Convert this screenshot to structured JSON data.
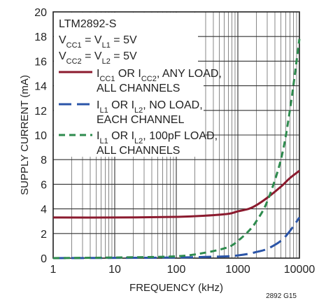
{
  "chart_data": {
    "type": "line",
    "x_scale": "log",
    "xlim": [
      1,
      10000
    ],
    "ylim": [
      0,
      20
    ],
    "xlabel": "FREQUENCY (kHz)",
    "ylabel": "SUPPLY CURRENT (mA)",
    "x_ticks": [
      "1",
      "10",
      "100",
      "1000",
      "10000"
    ],
    "y_ticks": [
      "0",
      "2",
      "4",
      "6",
      "8",
      "10",
      "12",
      "14",
      "16",
      "18",
      "20"
    ],
    "grid": true,
    "legend_position": "top-left",
    "figure_id": "2892 G15",
    "annotation": {
      "device": "LTM2892-S",
      "cond1": {
        "a": "V",
        "a_sub": "CC1",
        "b": " = V",
        "b_sub": "L1",
        "c": " = 5V"
      },
      "cond2": {
        "a": "V",
        "a_sub": "CC2",
        "b": " = V",
        "b_sub": "L2",
        "c": " = 5V"
      }
    },
    "series": [
      {
        "legend_line1": {
          "a": "I",
          "a_sub": "CC1",
          "b": " OR I",
          "b_sub": "CC2",
          "c": ", ANY LOAD,"
        },
        "legend_line2": "ALL CHANNELS",
        "color": "#8b1a2e",
        "dash": "solid",
        "x": [
          1,
          10,
          100,
          300,
          700,
          1000,
          1500,
          2000,
          3000,
          5000,
          7000,
          10000
        ],
        "values": [
          3.3,
          3.3,
          3.35,
          3.45,
          3.6,
          3.8,
          4.0,
          4.3,
          4.9,
          5.8,
          6.5,
          7.1
        ]
      },
      {
        "legend_line1": {
          "a": "I",
          "a_sub": "L1",
          "b": " OR I",
          "b_sub": "L2",
          "c": ",  NO LOAD,"
        },
        "legend_line2": "EACH CHANNEL",
        "color": "#2b55a8",
        "dash": "long-dash",
        "x": [
          1,
          10,
          100,
          300,
          700,
          1000,
          1500,
          2000,
          3000,
          5000,
          7000,
          10000
        ],
        "values": [
          0.0,
          0.02,
          0.05,
          0.1,
          0.15,
          0.22,
          0.35,
          0.5,
          0.75,
          1.4,
          2.2,
          3.3
        ]
      },
      {
        "legend_line1": {
          "a": "I",
          "a_sub": "L1",
          "b": " OR I",
          "b_sub": "L2",
          "c": ", 100pF LOAD,"
        },
        "legend_line2": "ALL CHANNELS",
        "color": "#2e8b4e",
        "dash": "short-dash",
        "x": [
          1,
          10,
          100,
          300,
          700,
          1000,
          1500,
          2000,
          3000,
          5000,
          7000,
          10000
        ],
        "values": [
          0.0,
          0.05,
          0.15,
          0.45,
          0.9,
          1.4,
          2.2,
          3.0,
          4.6,
          8.0,
          12.0,
          17.8
        ]
      }
    ]
  }
}
